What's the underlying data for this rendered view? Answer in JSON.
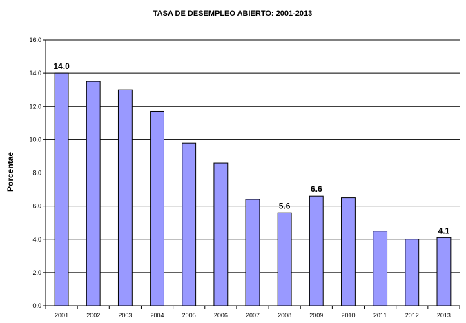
{
  "chart_data": {
    "type": "bar",
    "title": "TASA DE DESEMPLEO ABIERTO: 2001-2013",
    "xlabel": "",
    "ylabel": "Porcentae",
    "ylim": [
      0,
      16
    ],
    "ytick_labels": [
      "0.0",
      "2.0",
      "4.0",
      "6.0",
      "8.0",
      "10.0",
      "12.0",
      "14.0",
      "16.0"
    ],
    "categories": [
      "2001",
      "2002",
      "2003",
      "2004",
      "2005",
      "2006",
      "2007",
      "2008",
      "2009",
      "2010",
      "2011",
      "2012",
      "2013"
    ],
    "values": [
      14.0,
      13.5,
      13.0,
      11.7,
      9.8,
      8.6,
      6.4,
      5.6,
      6.6,
      6.5,
      4.5,
      4.0,
      4.1
    ],
    "data_labels": [
      {
        "index": 0,
        "text": "14.0"
      },
      {
        "index": 7,
        "text": "5.6"
      },
      {
        "index": 8,
        "text": "6.6"
      },
      {
        "index": 12,
        "text": "4.1"
      }
    ],
    "grid": true,
    "legend": "none",
    "bar_color": "#9999ff",
    "bar_edge_color": "#000000"
  }
}
